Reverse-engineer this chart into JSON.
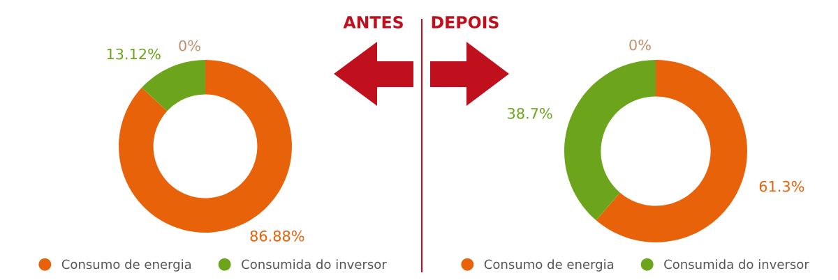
{
  "chart_data": [
    {
      "type": "donut",
      "title": "ANTES",
      "categories": [
        "Consumo de energia",
        "Consumida do inversor",
        null
      ],
      "values": [
        86.88,
        13.12,
        0
      ],
      "colors": [
        "#e8620a",
        "#6ca51b",
        "#c4906c"
      ],
      "value_labels": [
        "86.88%",
        "13.12%",
        "0%"
      ],
      "legend": "bottom"
    },
    {
      "type": "donut",
      "title": "DEPOIS",
      "categories": [
        "Consumo de energia",
        "Consumida do inversor",
        null
      ],
      "values": [
        61.3,
        38.7,
        0
      ],
      "colors": [
        "#e8620a",
        "#6ca51b",
        "#c4906c"
      ],
      "value_labels": [
        "61.3%",
        "38.7%",
        "0%"
      ],
      "legend": "bottom"
    }
  ]
}
